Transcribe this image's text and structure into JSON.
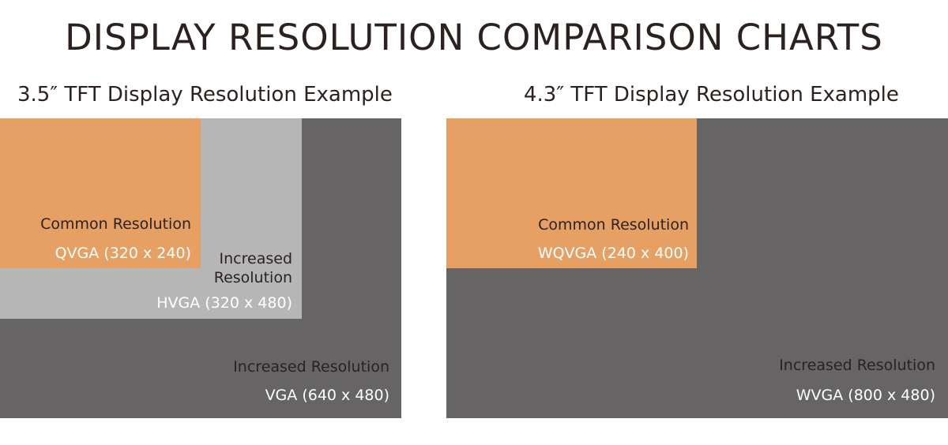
{
  "title": "DISPLAY RESOLUTION COMPARISON CHARTS",
  "left_panel": {
    "subtitle": "3.5″ TFT Display Resolution Example",
    "common": {
      "heading": "Common Resolution",
      "value": "QVGA (320 x 240)"
    },
    "increased_mid": {
      "heading_line1": "Increased",
      "heading_line2": "Resolution",
      "value": "HVGA (320 x 480)"
    },
    "increased_outer": {
      "heading": "Increased Resolution",
      "value": "VGA (640 x 480)"
    }
  },
  "right_panel": {
    "subtitle": "4.3″ TFT Display Resolution Example",
    "common": {
      "heading": "Common Resolution",
      "value": "WQVGA (240 x 400)"
    },
    "increased_outer": {
      "heading": "Increased Resolution",
      "value": "WVGA (800 x 480)"
    }
  },
  "colors": {
    "common": "#e6a064",
    "increased_mid": "#b7b6b6",
    "increased_outer": "#666465",
    "text_dark": "#2b2220"
  }
}
